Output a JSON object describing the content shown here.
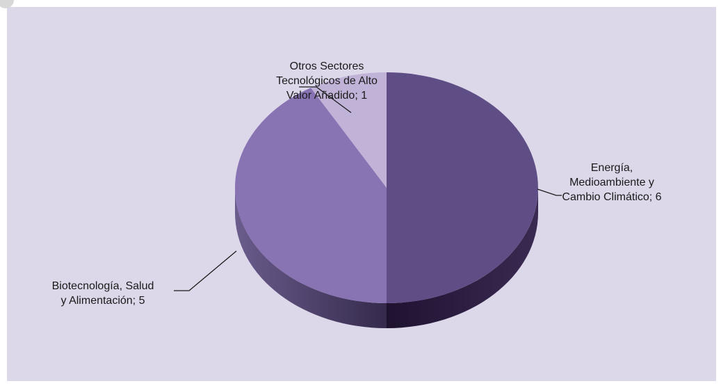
{
  "chart_data": {
    "type": "pie",
    "values": [
      6,
      5,
      1
    ],
    "value_labels": [
      [
        "Energía,",
        "Medioambiente y",
        "Cambio Climático; 6"
      ],
      [
        "Biotecnología, Salud",
        "y Alimentación; 5"
      ],
      [
        "Otros Sectores",
        "Tecnológicos de Alto",
        "Valor Añadido; 1"
      ]
    ],
    "colors": [
      "#5f4d86",
      "#8873b3",
      "#c0b3d7"
    ]
  }
}
